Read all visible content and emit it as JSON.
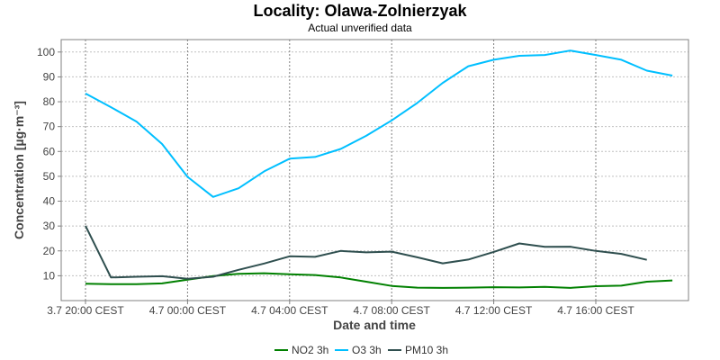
{
  "chart_data": {
    "type": "line",
    "title": "Locality: Olawa-Zolnierzyak",
    "subtitle": "Actual unverified data",
    "xlabel": "Date and time",
    "ylabel": "Concentration [µg·m⁻³]",
    "x_ticks": [
      "3.7 20:00 CEST",
      "4.7 00:00 CEST",
      "4.7 04:00 CEST",
      "4.7 08:00 CEST",
      "4.7 12:00 CEST",
      "4.7 16:00 CEST"
    ],
    "y_ticks": [
      10,
      20,
      30,
      40,
      50,
      60,
      70,
      80,
      90,
      100
    ],
    "ylim": [
      0,
      105
    ],
    "grid": true,
    "legend_position": "bottom",
    "x": [
      "3.7 20:00",
      "3.7 21:00",
      "3.7 22:00",
      "3.7 23:00",
      "4.7 00:00",
      "4.7 01:00",
      "4.7 02:00",
      "4.7 03:00",
      "4.7 04:00",
      "4.7 05:00",
      "4.7 06:00",
      "4.7 07:00",
      "4.7 08:00",
      "4.7 09:00",
      "4.7 10:00",
      "4.7 11:00",
      "4.7 12:00",
      "4.7 13:00",
      "4.7 14:00",
      "4.7 15:00",
      "4.7 16:00",
      "4.7 17:00",
      "4.7 18:00",
      "4.7 19:00"
    ],
    "series": [
      {
        "name": "NO2 3h",
        "color": "#008000",
        "values": [
          6.8,
          6.6,
          6.6,
          6.9,
          8.4,
          9.9,
          10.8,
          11.0,
          10.6,
          10.3,
          9.3,
          7.6,
          5.9,
          5.2,
          5.1,
          5.2,
          5.4,
          5.3,
          5.5,
          5.1,
          5.8,
          6.0,
          7.6,
          8.1
        ]
      },
      {
        "name": "O3 3h",
        "color": "#00bfff",
        "values": [
          83.3,
          77.8,
          72.0,
          63.0,
          49.8,
          41.7,
          45.2,
          52.0,
          57.1,
          57.8,
          61.0,
          66.3,
          72.5,
          79.5,
          87.6,
          94.3,
          96.9,
          98.5,
          98.8,
          100.6,
          98.8,
          96.9,
          92.5,
          90.5
        ]
      },
      {
        "name": "PM10 3h",
        "color": "#2f4f4f",
        "values": [
          30.1,
          9.3,
          9.6,
          9.8,
          8.8,
          9.6,
          12.4,
          14.9,
          17.8,
          17.6,
          20.0,
          19.4,
          19.7,
          17.4,
          15.0,
          16.5,
          19.6,
          23.0,
          21.6,
          21.7,
          20.0,
          18.8,
          16.4,
          null
        ]
      }
    ]
  }
}
